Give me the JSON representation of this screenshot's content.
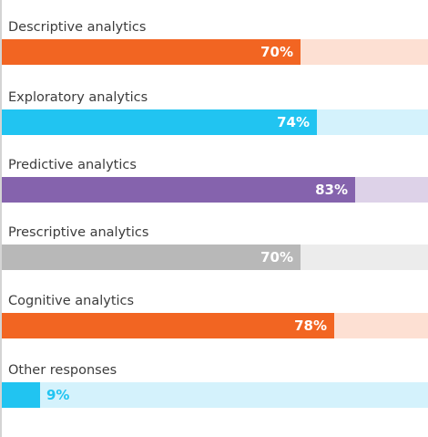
{
  "chart_data": {
    "type": "bar",
    "orientation": "horizontal",
    "title": "",
    "xlabel": "",
    "ylabel": "",
    "xlim": [
      0,
      100
    ],
    "unit": "%",
    "grid": false,
    "legend": "none",
    "categories": [
      "Descriptive analytics",
      "Exploratory analytics",
      "Predictive analytics",
      "Prescriptive analytics",
      "Cognitive analytics",
      "Other responses"
    ],
    "values": [
      70,
      74,
      83,
      70,
      78,
      9
    ],
    "value_labels": [
      "70%",
      "74%",
      "83%",
      "70%",
      "78%",
      "9%"
    ],
    "bar_colors": [
      "#f26522",
      "#21c4f1",
      "#8563ad",
      "#b8b8b8",
      "#f26522",
      "#21c4f1"
    ],
    "track_colors": [
      "#fde0d3",
      "#d4f2fc",
      "#ddd2e8",
      "#ececec",
      "#fde0d3",
      "#d4f2fc"
    ],
    "value_label_colors": [
      "#ffffff",
      "#ffffff",
      "#ffffff",
      "#ffffff",
      "#ffffff",
      "#21c4f1"
    ],
    "value_label_position": [
      "inside-end",
      "inside-end",
      "inside-end",
      "inside-end",
      "inside-end",
      "outside-end"
    ]
  }
}
